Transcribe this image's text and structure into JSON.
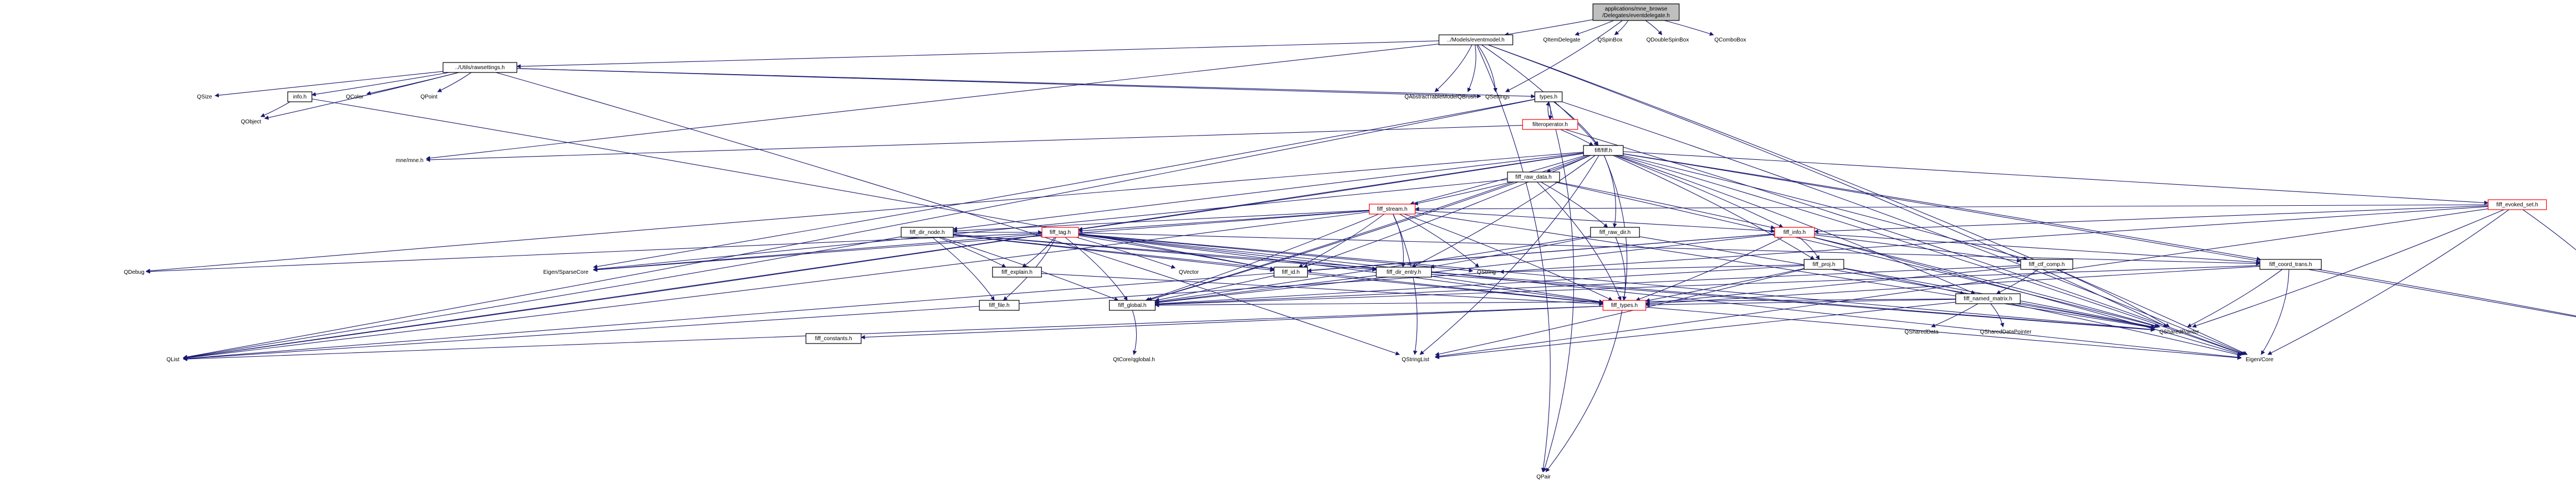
{
  "graph": {
    "title": "applications/mne_browse/Delegates/eventdelegate.h",
    "nodes": [
      {
        "id": "root",
        "label": "applications/mne_browse\n/Delegates/eventdelegate.h",
        "style": "gray"
      },
      {
        "id": "eventmodel",
        "label": "../Models/eventmodel.h",
        "style": "box"
      },
      {
        "id": "qitemdelegate",
        "label": "QItemDelegate",
        "style": "plain"
      },
      {
        "id": "qspinbox",
        "label": "QSpinBox",
        "style": "plain"
      },
      {
        "id": "qdoublespinbox",
        "label": "QDoubleSpinBox",
        "style": "plain"
      },
      {
        "id": "qcombobox",
        "label": "QComboBox",
        "style": "plain"
      },
      {
        "id": "qsettings",
        "label": "QSettings",
        "style": "plain"
      },
      {
        "id": "qabstracttablemodel",
        "label": "QAbstractTableModel",
        "style": "plain"
      },
      {
        "id": "qbrush",
        "label": "QBrush",
        "style": "plain"
      },
      {
        "id": "qpair",
        "label": "QPair",
        "style": "plain"
      },
      {
        "id": "rawsettings",
        "label": "../Utils/rawsettings.h",
        "style": "box"
      },
      {
        "id": "qsize",
        "label": "QSize",
        "style": "plain"
      },
      {
        "id": "info",
        "label": "info.h",
        "style": "box"
      },
      {
        "id": "qcolor",
        "label": "QColor",
        "style": "plain"
      },
      {
        "id": "qpoint",
        "label": "QPoint",
        "style": "plain"
      },
      {
        "id": "qobject",
        "label": "QObject",
        "style": "plain"
      },
      {
        "id": "types",
        "label": "types.h",
        "style": "box"
      },
      {
        "id": "filteroperator",
        "label": "filteroperator.h",
        "style": "red"
      },
      {
        "id": "mnemne",
        "label": "mne/mne.h",
        "style": "plain"
      },
      {
        "id": "fiff",
        "label": "fiff/fiff.h",
        "style": "box"
      },
      {
        "id": "fiffrawdata",
        "label": "fiff_raw_data.h",
        "style": "box"
      },
      {
        "id": "fiffevokedset",
        "label": "fiff_evoked_set.h",
        "style": "red"
      },
      {
        "id": "fiffstream",
        "label": "fiff_stream.h",
        "style": "red"
      },
      {
        "id": "fiffinfo",
        "label": "fiff_info.h",
        "style": "red"
      },
      {
        "id": "fiffdirnode",
        "label": "fiff_dir_node.h",
        "style": "box"
      },
      {
        "id": "fifftag",
        "label": "fiff_tag.h",
        "style": "red"
      },
      {
        "id": "fiffrawdir",
        "label": "fiff_raw_dir.h",
        "style": "box"
      },
      {
        "id": "fiffproj",
        "label": "fiff_proj.h",
        "style": "box"
      },
      {
        "id": "fiffctfcomp",
        "label": "fiff_ctf_comp.h",
        "style": "box"
      },
      {
        "id": "fiffcoordtrans",
        "label": "fiff_coord_trans.h",
        "style": "box"
      },
      {
        "id": "fiffnamedmatrix",
        "label": "fiff_named_matrix.h",
        "style": "box"
      },
      {
        "id": "fiffexplain",
        "label": "fiff_explain.h",
        "style": "box"
      },
      {
        "id": "fiffid",
        "label": "fiff_id.h",
        "style": "box"
      },
      {
        "id": "fiffdirentry",
        "label": "fiff_dir_entry.h",
        "style": "box"
      },
      {
        "id": "fifffile",
        "label": "fiff_file.h",
        "style": "box"
      },
      {
        "id": "fiffglobal",
        "label": "fiff_global.h",
        "style": "box"
      },
      {
        "id": "fifftypes",
        "label": "fiff_types.h",
        "style": "red"
      },
      {
        "id": "fiffconstants",
        "label": "fiff_constants.h",
        "style": "box"
      },
      {
        "id": "eigensparse",
        "label": "Eigen/SparseCore",
        "style": "plain"
      },
      {
        "id": "qdebug",
        "label": "QDebug",
        "style": "plain"
      },
      {
        "id": "qvector",
        "label": "QVector",
        "style": "plain"
      },
      {
        "id": "qstring",
        "label": "QString",
        "style": "plain"
      },
      {
        "id": "qshareddata",
        "label": "QSharedData",
        "style": "plain"
      },
      {
        "id": "qshareddatapointer",
        "label": "QSharedDataPointer",
        "style": "plain"
      },
      {
        "id": "qsharedpointer",
        "label": "QSharedPointer",
        "style": "plain"
      },
      {
        "id": "qiodevice",
        "label": "QIODevice",
        "style": "plain"
      },
      {
        "id": "qlist",
        "label": "QList",
        "style": "plain"
      },
      {
        "id": "qstringlist",
        "label": "QStringList",
        "style": "plain"
      },
      {
        "id": "qcoreglobal",
        "label": "QtCore/qglobal.h",
        "style": "plain"
      },
      {
        "id": "eigencore",
        "label": "Eigen/Core",
        "style": "plain"
      }
    ],
    "edges": [
      [
        "root",
        "eventmodel"
      ],
      [
        "root",
        "qitemdelegate"
      ],
      [
        "root",
        "qspinbox"
      ],
      [
        "root",
        "qdoublespinbox"
      ],
      [
        "root",
        "qcombobox"
      ],
      [
        "root",
        "qsettings"
      ],
      [
        "eventmodel",
        "rawsettings"
      ],
      [
        "eventmodel",
        "qabstracttablemodel"
      ],
      [
        "eventmodel",
        "qbrush"
      ],
      [
        "eventmodel",
        "qsettings"
      ],
      [
        "eventmodel",
        "qpair"
      ],
      [
        "eventmodel",
        "fiff"
      ],
      [
        "eventmodel",
        "mnemne"
      ],
      [
        "eventmodel",
        "eigencore"
      ],
      [
        "eventmodel",
        "qsharedpointer"
      ],
      [
        "rawsettings",
        "qsize"
      ],
      [
        "rawsettings",
        "info"
      ],
      [
        "rawsettings",
        "qcolor"
      ],
      [
        "rawsettings",
        "qpoint"
      ],
      [
        "rawsettings",
        "qobject"
      ],
      [
        "rawsettings",
        "types"
      ],
      [
        "rawsettings",
        "qsettings"
      ],
      [
        "rawsettings",
        "qstringlist"
      ],
      [
        "info",
        "qobject"
      ],
      [
        "info",
        "fiffid"
      ],
      [
        "types",
        "filteroperator"
      ],
      [
        "types",
        "fiff"
      ],
      [
        "types",
        "qlist"
      ],
      [
        "types",
        "eigencore"
      ],
      [
        "types",
        "qpair"
      ],
      [
        "types",
        "eigensparse"
      ],
      [
        "filteroperator",
        "types"
      ],
      [
        "filteroperator",
        "mnemne"
      ],
      [
        "filteroperator",
        "fiff"
      ],
      [
        "filteroperator",
        "eigencore"
      ],
      [
        "fiff",
        "fiffrawdata"
      ],
      [
        "fiff",
        "fiffevokedset"
      ],
      [
        "fiff",
        "fiffstream"
      ],
      [
        "fiff",
        "fiffinfo"
      ],
      [
        "fiff",
        "fiffdirnode"
      ],
      [
        "fiff",
        "fifftag"
      ],
      [
        "fiff",
        "fiffrawdir"
      ],
      [
        "fiff",
        "fiffproj"
      ],
      [
        "fiff",
        "fiffctfcomp"
      ],
      [
        "fiff",
        "fiffcoordtrans"
      ],
      [
        "fiff",
        "fiffnamedmatrix"
      ],
      [
        "fiff",
        "fiffdirentry"
      ],
      [
        "fiff",
        "fiffid"
      ],
      [
        "fiff",
        "fiffglobal"
      ],
      [
        "fiff",
        "fifftypes"
      ],
      [
        "fiff",
        "qlist"
      ],
      [
        "fiff",
        "qiodevice"
      ],
      [
        "fiff",
        "qdebug"
      ],
      [
        "fiff",
        "eigencore"
      ],
      [
        "fiff",
        "qstringlist"
      ],
      [
        "fiffrawdata",
        "fiffstream"
      ],
      [
        "fiffrawdata",
        "fiffinfo"
      ],
      [
        "fiffrawdata",
        "fiffrawdir"
      ],
      [
        "fiffrawdata",
        "fifftypes"
      ],
      [
        "fiffrawdata",
        "fiffglobal"
      ],
      [
        "fiffrawdata",
        "qsharedpointer"
      ],
      [
        "fiffrawdata",
        "eigensparse"
      ],
      [
        "fiffevokedset",
        "fiffinfo"
      ],
      [
        "fiffevokedset",
        "fiffstream"
      ],
      [
        "fiffevokedset",
        "qsharedpointer"
      ],
      [
        "fiffevokedset",
        "qiodevice"
      ],
      [
        "fiffevokedset",
        "eigencore"
      ],
      [
        "fiffevokedset",
        "qstringlist"
      ],
      [
        "fiffevokedset",
        "qlist"
      ],
      [
        "fiffstream",
        "fiffdirnode"
      ],
      [
        "fiffstream",
        "fifftag"
      ],
      [
        "fiffstream",
        "fiffid"
      ],
      [
        "fiffstream",
        "fiffdirentry"
      ],
      [
        "fiffstream",
        "fiffinfo"
      ],
      [
        "fiffstream",
        "fiffglobal"
      ],
      [
        "fiffstream",
        "fifftypes"
      ],
      [
        "fiffstream",
        "qstring"
      ],
      [
        "fiffstream",
        "qlist"
      ],
      [
        "fiffstream",
        "qstringlist"
      ],
      [
        "fiffstream",
        "qsharedpointer"
      ],
      [
        "fiffstream",
        "eigensparse"
      ],
      [
        "fiffinfo",
        "fiffproj"
      ],
      [
        "fiffinfo",
        "fiffctfcomp"
      ],
      [
        "fiffinfo",
        "fiffcoordtrans"
      ],
      [
        "fiffinfo",
        "fiffid"
      ],
      [
        "fiffinfo",
        "fifftypes"
      ],
      [
        "fiffinfo",
        "fiffglobal"
      ],
      [
        "fiffinfo",
        "qsharedpointer"
      ],
      [
        "fiffinfo",
        "qlist"
      ],
      [
        "fiffinfo",
        "eigencore"
      ],
      [
        "fiffdirnode",
        "fiffexplain"
      ],
      [
        "fiffdirnode",
        "fifffile"
      ],
      [
        "fiffdirnode",
        "fiffid"
      ],
      [
        "fiffdirnode",
        "fifftag"
      ],
      [
        "fiffdirnode",
        "fiffdirentry"
      ],
      [
        "fiffdirnode",
        "fiffglobal"
      ],
      [
        "fiffdirnode",
        "fifftypes"
      ],
      [
        "fiffdirnode",
        "qlist"
      ],
      [
        "fiffdirnode",
        "qsharedpointer"
      ],
      [
        "fifftag",
        "fiffexplain"
      ],
      [
        "fifftag",
        "fifffile"
      ],
      [
        "fifftag",
        "fiffid"
      ],
      [
        "fifftag",
        "fiffdirentry"
      ],
      [
        "fifftag",
        "fiffglobal"
      ],
      [
        "fifftag",
        "fifftypes"
      ],
      [
        "fifftag",
        "fiffcoordtrans"
      ],
      [
        "fifftag",
        "qdebug"
      ],
      [
        "fifftag",
        "qvector"
      ],
      [
        "fifftag",
        "qstring"
      ],
      [
        "fifftag",
        "qsharedpointer"
      ],
      [
        "fifftag",
        "qlist"
      ],
      [
        "fifftag",
        "eigencore"
      ],
      [
        "fifftag",
        "eigensparse"
      ],
      [
        "fiffrawdir",
        "fiffdirentry"
      ],
      [
        "fiffrawdir",
        "fiffglobal"
      ],
      [
        "fiffrawdir",
        "fifftypes"
      ],
      [
        "fiffrawdir",
        "qsharedpointer"
      ],
      [
        "fiffproj",
        "fiffnamedmatrix"
      ],
      [
        "fiffproj",
        "fiffglobal"
      ],
      [
        "fiffproj",
        "fifftypes"
      ],
      [
        "fiffproj",
        "qstring"
      ],
      [
        "fiffproj",
        "qsharedpointer"
      ],
      [
        "fiffproj",
        "qstringlist"
      ],
      [
        "fiffctfcomp",
        "fiffnamedmatrix"
      ],
      [
        "fiffctfcomp",
        "fiffglobal"
      ],
      [
        "fiffctfcomp",
        "fifftypes"
      ],
      [
        "fiffctfcomp",
        "qsharedpointer"
      ],
      [
        "fiffcoordtrans",
        "fiffglobal"
      ],
      [
        "fiffcoordtrans",
        "fifftypes"
      ],
      [
        "fiffcoordtrans",
        "qiodevice"
      ],
      [
        "fiffcoordtrans",
        "qsharedpointer"
      ],
      [
        "fiffcoordtrans",
        "eigencore"
      ],
      [
        "fiffnamedmatrix",
        "fiffglobal"
      ],
      [
        "fiffnamedmatrix",
        "fifftypes"
      ],
      [
        "fiffnamedmatrix",
        "qshareddata"
      ],
      [
        "fiffnamedmatrix",
        "qshareddatapointer"
      ],
      [
        "fiffnamedmatrix",
        "qsharedpointer"
      ],
      [
        "fiffnamedmatrix",
        "qstringlist"
      ],
      [
        "fiffnamedmatrix",
        "eigencore"
      ],
      [
        "fiffexplain",
        "fifftypes"
      ],
      [
        "fiffid",
        "fiffglobal"
      ],
      [
        "fiffid",
        "fifftypes"
      ],
      [
        "fiffdirentry",
        "fiffglobal"
      ],
      [
        "fiffdirentry",
        "fifftypes"
      ],
      [
        "fiffdirentry",
        "qsharedpointer"
      ],
      [
        "fiffglobal",
        "qcoreglobal"
      ],
      [
        "fifftypes",
        "fiffconstants"
      ],
      [
        "fifftypes",
        "eigencore"
      ],
      [
        "fifftypes",
        "qpair"
      ],
      [
        "fifftypes",
        "qlist"
      ]
    ]
  }
}
